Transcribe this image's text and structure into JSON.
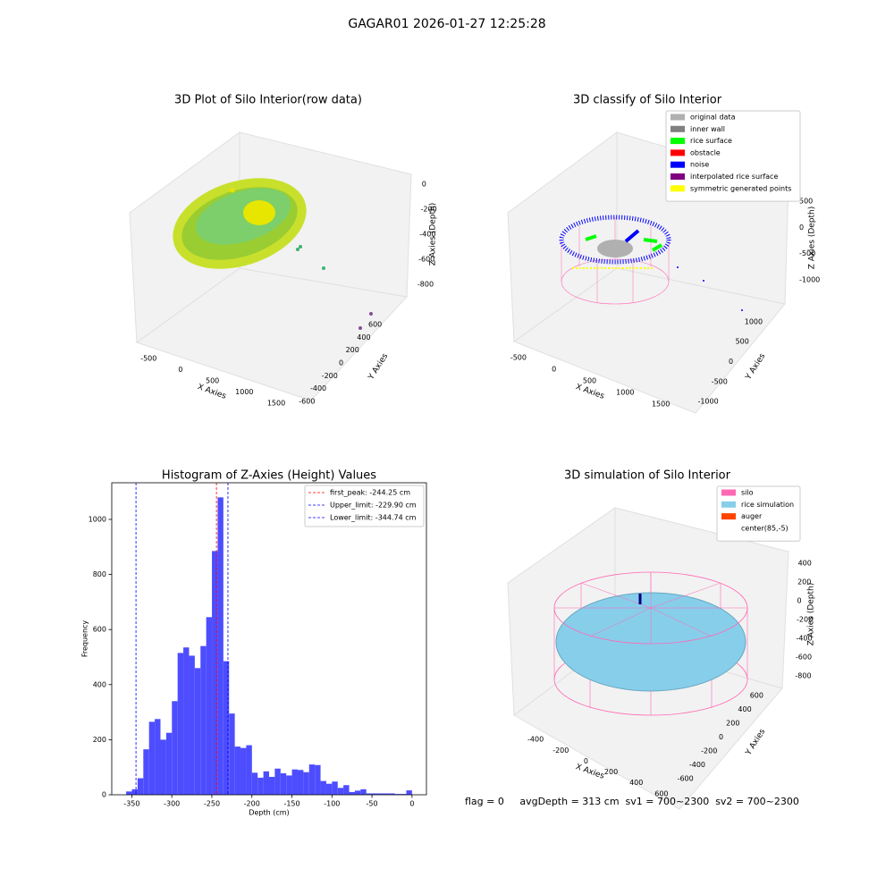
{
  "suptitle": "GAGAR01 2026-01-27 12:25:28",
  "footer": "flag = 0     avgDepth = 313 cm  sv1 = 700~2300  sv2 = 700~2300",
  "chart_data": [
    {
      "type": "scatter3d",
      "title": "3D Plot of Silo Interior(row data)",
      "xlabel": "X Axies",
      "ylabel": "Y Axies",
      "zlabel": "Z Axies (Depth)",
      "xlim": [
        -700,
        1850
      ],
      "ylim": [
        -700,
        700
      ],
      "zlim": [
        -950,
        50
      ],
      "xticks": [
        -500,
        0,
        500,
        1000,
        1500
      ],
      "yticks": [
        -600,
        -400,
        -200,
        0,
        200,
        400,
        600
      ],
      "zticks": [
        0,
        -200,
        -400,
        -600,
        -800
      ]
    },
    {
      "type": "scatter3d",
      "title": "3D classify of Silo Interior",
      "xlabel": "X Axies",
      "ylabel": "Y Axies",
      "zlabel": "Z Axies (Depth)",
      "xlim": [
        -700,
        1850
      ],
      "ylim": [
        -1200,
        1200
      ],
      "zlim": [
        -1200,
        700
      ],
      "xticks": [
        -500,
        0,
        500,
        1000,
        1500
      ],
      "yticks": [
        -1000,
        -500,
        0,
        500,
        1000
      ],
      "zticks": [
        500,
        0,
        -500,
        -1000
      ],
      "series": [
        {
          "name": "original data",
          "color": "#b0b0b0"
        },
        {
          "name": "inner wall",
          "color": "#808080"
        },
        {
          "name": "rice surface",
          "color": "#00ff00"
        },
        {
          "name": "obstacle",
          "color": "#ff0000"
        },
        {
          "name": "noise",
          "color": "#0000ff"
        },
        {
          "name": "interpolated rice surface",
          "color": "#800080"
        },
        {
          "name": "symmetric generated points",
          "color": "#ffff00"
        }
      ]
    },
    {
      "type": "histogram",
      "title": "Histogram of Z-Axies (Height) Values",
      "xlabel": "Depth (cm)",
      "ylabel": "Frequency",
      "color": "#4d4dff",
      "bins": [
        -357,
        -349.86,
        -342.72,
        -335.58,
        -328.44,
        -321.3,
        -314.16,
        -307.02,
        -299.88,
        -292.74,
        -285.6,
        -278.46,
        -271.32,
        -264.18,
        -257.04,
        -249.9,
        -242.76,
        -235.62,
        -228.48,
        -221.34,
        -214.2,
        -207.06,
        -199.92,
        -192.78,
        -185.64,
        -178.5,
        -171.36,
        -164.22,
        -157.08,
        -149.94,
        -142.8,
        -135.66,
        -128.52,
        -121.38,
        -114.24,
        -107.1,
        -99.96,
        -92.82,
        -85.68,
        -78.54,
        -71.4,
        -64.26,
        -57.12,
        -49.98,
        -42.84,
        -35.7,
        -28.56,
        -21.42,
        -14.28,
        -7.14,
        0
      ],
      "values": [
        12,
        20,
        60,
        165,
        265,
        275,
        200,
        225,
        340,
        515,
        535,
        505,
        460,
        540,
        645,
        885,
        1080,
        485,
        295,
        175,
        170,
        180,
        80,
        62,
        85,
        65,
        95,
        78,
        70,
        92,
        90,
        82,
        110,
        108,
        50,
        40,
        48,
        25,
        35,
        10,
        15,
        20,
        5,
        5,
        5,
        5,
        5,
        3,
        3,
        16
      ],
      "xlim": [
        -375,
        18
      ],
      "ylim": [
        0,
        1133
      ],
      "xticks": [
        -350,
        -300,
        -250,
        -200,
        -150,
        -100,
        -50,
        0
      ],
      "yticks": [
        0,
        200,
        400,
        600,
        800,
        1000
      ],
      "vlines": [
        {
          "label": "first_peak: -244.25 cm",
          "value": -244.25,
          "color": "#ff0000"
        },
        {
          "label": "Upper_limit: -229.90 cm",
          "value": -229.9,
          "color": "#0000ff"
        },
        {
          "label": "Lower_limit: -344.74 cm",
          "value": -344.74,
          "color": "#0000ff"
        }
      ]
    },
    {
      "type": "surface3d",
      "title": "3D simulation of Silo Interior",
      "xlabel": "X Axies",
      "ylabel": "Y Axies",
      "zlabel": "Z Axies (Depth)",
      "xlim": [
        -550,
        750
      ],
      "ylim": [
        -700,
        700
      ],
      "zlim": [
        -950,
        550
      ],
      "xticks": [
        -400,
        -200,
        0,
        200,
        400,
        600
      ],
      "yticks": [
        -600,
        -400,
        -200,
        0,
        200,
        400,
        600
      ],
      "zticks": [
        400,
        200,
        0,
        -200,
        -400,
        -600,
        -800
      ],
      "series": [
        {
          "name": "silo",
          "color": "#ff69b4"
        },
        {
          "name": "rice simulation",
          "color": "#87ceeb"
        },
        {
          "name": "auger",
          "color": "#ff4500"
        },
        {
          "name": "center(85,-5)",
          "color": "#ffffff"
        }
      ]
    }
  ]
}
